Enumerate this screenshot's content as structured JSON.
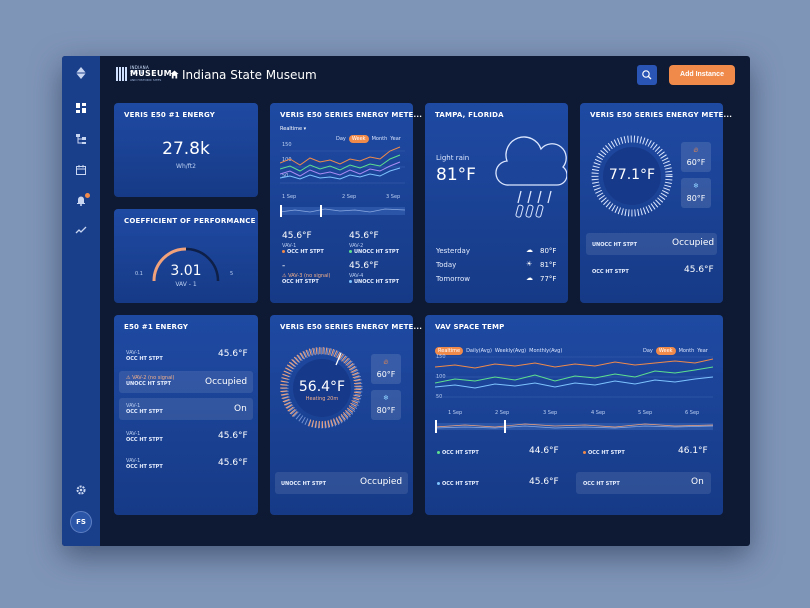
{
  "app": {
    "title": "Indiana State Museum",
    "logo": {
      "line1": "INDIANA STATE",
      "line2": "MUSEUM",
      "line3": "AND HISTORIC SITES"
    }
  },
  "header": {
    "add_label": "Add Instance"
  },
  "rail": {
    "avatar": "FS"
  },
  "icons": [
    "logo-diamond-icon",
    "dashboard-icon",
    "hierarchy-icon",
    "calendar-icon",
    "bell-icon",
    "trend-icon",
    "gear-icon",
    "home-icon",
    "search-icon",
    "flame-icon",
    "snowflake-icon",
    "rain-cloud-icon",
    "cloud-icon",
    "sun-icon",
    "warning-icon"
  ],
  "colors": {
    "accent": "#f08a4b",
    "rail": "#1a3f8a",
    "card": "#1f4aa3",
    "page": "#7f95b8"
  },
  "c1": {
    "title": "VERIS E50 #1 ENERGY",
    "value": "27.8k",
    "unit": "Wh/ft2"
  },
  "c2": {
    "title": "COEFFICIENT OF PERFORMANCE",
    "value": "3.01",
    "sub": "VAV - 1",
    "min": "0.1",
    "max": "5",
    "level": 0.6
  },
  "c3": {
    "title": "VERIS E50 SERIES ENERGY METE...",
    "mode": "Realtime",
    "tabs": [
      "Day",
      "Week",
      "Month",
      "Year"
    ],
    "active_tab": "Week",
    "yticks": [
      "150",
      "100",
      "50"
    ],
    "xticks": [
      "1 Sep",
      "2 Sep",
      "3 Sep"
    ],
    "readings": [
      {
        "value": "45.6°F",
        "device": "VAV-1",
        "label": "OCC HT STPT"
      },
      {
        "value": "45.6°F",
        "device": "VAV-2",
        "label": "UNOCC HT STPT"
      },
      {
        "value": "-",
        "device": "VAV-3 (no signal)",
        "label": "OCC HT STPT"
      },
      {
        "value": "45.6°F",
        "device": "VAV-4",
        "label": "UNOCC HT STPT"
      }
    ]
  },
  "c4": {
    "title": "TAMPA, FLORIDA",
    "condition": "Light rain",
    "temp": "81°F",
    "forecast": [
      {
        "day": "Yesterday",
        "temp": "80°F",
        "icon": "rain-cloud-icon"
      },
      {
        "day": "Today",
        "temp": "81°F",
        "icon": "sun-icon"
      },
      {
        "day": "Tomorrow",
        "temp": "77°F",
        "icon": "cloud-icon"
      }
    ]
  },
  "c5": {
    "title": "VERIS E50 SERIES ENERGY METE...",
    "temp": "77.1°F",
    "heat": "60°F",
    "cool": "80°F",
    "status_label": "UNOCC HT STPT",
    "status": "Occupied",
    "reading_label": "OCC HT STPT",
    "reading": "45.6°F"
  },
  "c6": {
    "title": "E50 #1 ENERGY",
    "rows": [
      {
        "device": "VAV-1",
        "label": "OCC HT STPT",
        "value": "45.6°F"
      },
      {
        "device": "VAV-2 (no signal)",
        "label": "UNOCC HT STPT",
        "value": "Occupied"
      },
      {
        "device": "VAV-1",
        "label": "OCC HT STPT",
        "value": "On"
      },
      {
        "device": "VAV-1",
        "label": "OCC HT STPT",
        "value": "45.6°F"
      },
      {
        "device": "VAV-1",
        "label": "OCC HT STPT",
        "value": "45.6°F"
      }
    ]
  },
  "c7": {
    "title": "VERIS E50 SERIES ENERGY METE...",
    "temp": "56.4°F",
    "sub": "Heating 20m",
    "heat": "60°F",
    "cool": "80°F",
    "status_label": "UNOCC HT STPT",
    "status": "Occupied"
  },
  "c8": {
    "title": "VAV SPACE TEMP",
    "modes": [
      "Realtime",
      "Daily(Avg)",
      "Weekly(Avg)",
      "Monthly(Avg)"
    ],
    "active_mode": "Realtime",
    "tabs": [
      "Day",
      "Week",
      "Month",
      "Year"
    ],
    "active_tab": "Week",
    "yticks": [
      "150",
      "100",
      "50"
    ],
    "xticks": [
      "1 Sep",
      "2 Sep",
      "3 Sep",
      "4 Sep",
      "5 Sep",
      "6 Sep"
    ],
    "readings": [
      {
        "label": "OCC HT STPT",
        "value": "44.6°F"
      },
      {
        "label": "OCC HT STPT",
        "value": "46.1°F"
      },
      {
        "label": "OCC HT STPT",
        "value": "45.6°F"
      },
      {
        "label": "OCC HT STPT",
        "value": "On"
      }
    ]
  }
}
